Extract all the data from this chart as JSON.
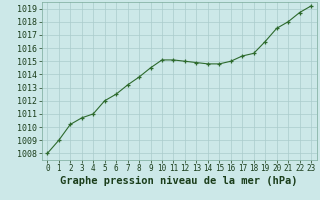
{
  "x": [
    0,
    1,
    2,
    3,
    4,
    5,
    6,
    7,
    8,
    9,
    10,
    11,
    12,
    13,
    14,
    15,
    16,
    17,
    18,
    19,
    20,
    21,
    22,
    23
  ],
  "y": [
    1008.0,
    1009.0,
    1010.2,
    1010.7,
    1011.0,
    1012.0,
    1012.5,
    1013.2,
    1013.8,
    1014.5,
    1015.1,
    1015.1,
    1015.0,
    1014.9,
    1014.8,
    1014.8,
    1015.0,
    1015.4,
    1015.6,
    1016.5,
    1017.5,
    1018.0,
    1018.7,
    1019.2
  ],
  "line_color": "#2d6a2d",
  "marker": "+",
  "marker_size": 3,
  "bg_color": "#cce8e8",
  "grid_color": "#aacccc",
  "xlabel": "Graphe pression niveau de la mer (hPa)",
  "xlabel_fontsize": 7.5,
  "xlim": [
    -0.5,
    23.5
  ],
  "ylim": [
    1007.5,
    1019.5
  ],
  "yticks": [
    1008,
    1009,
    1010,
    1011,
    1012,
    1013,
    1014,
    1015,
    1016,
    1017,
    1018,
    1019
  ],
  "xticks": [
    0,
    1,
    2,
    3,
    4,
    5,
    6,
    7,
    8,
    9,
    10,
    11,
    12,
    13,
    14,
    15,
    16,
    17,
    18,
    19,
    20,
    21,
    22,
    23
  ],
  "tick_fontsize": 5.5,
  "ytick_fontsize": 6.0,
  "label_color": "#1a3d1a"
}
